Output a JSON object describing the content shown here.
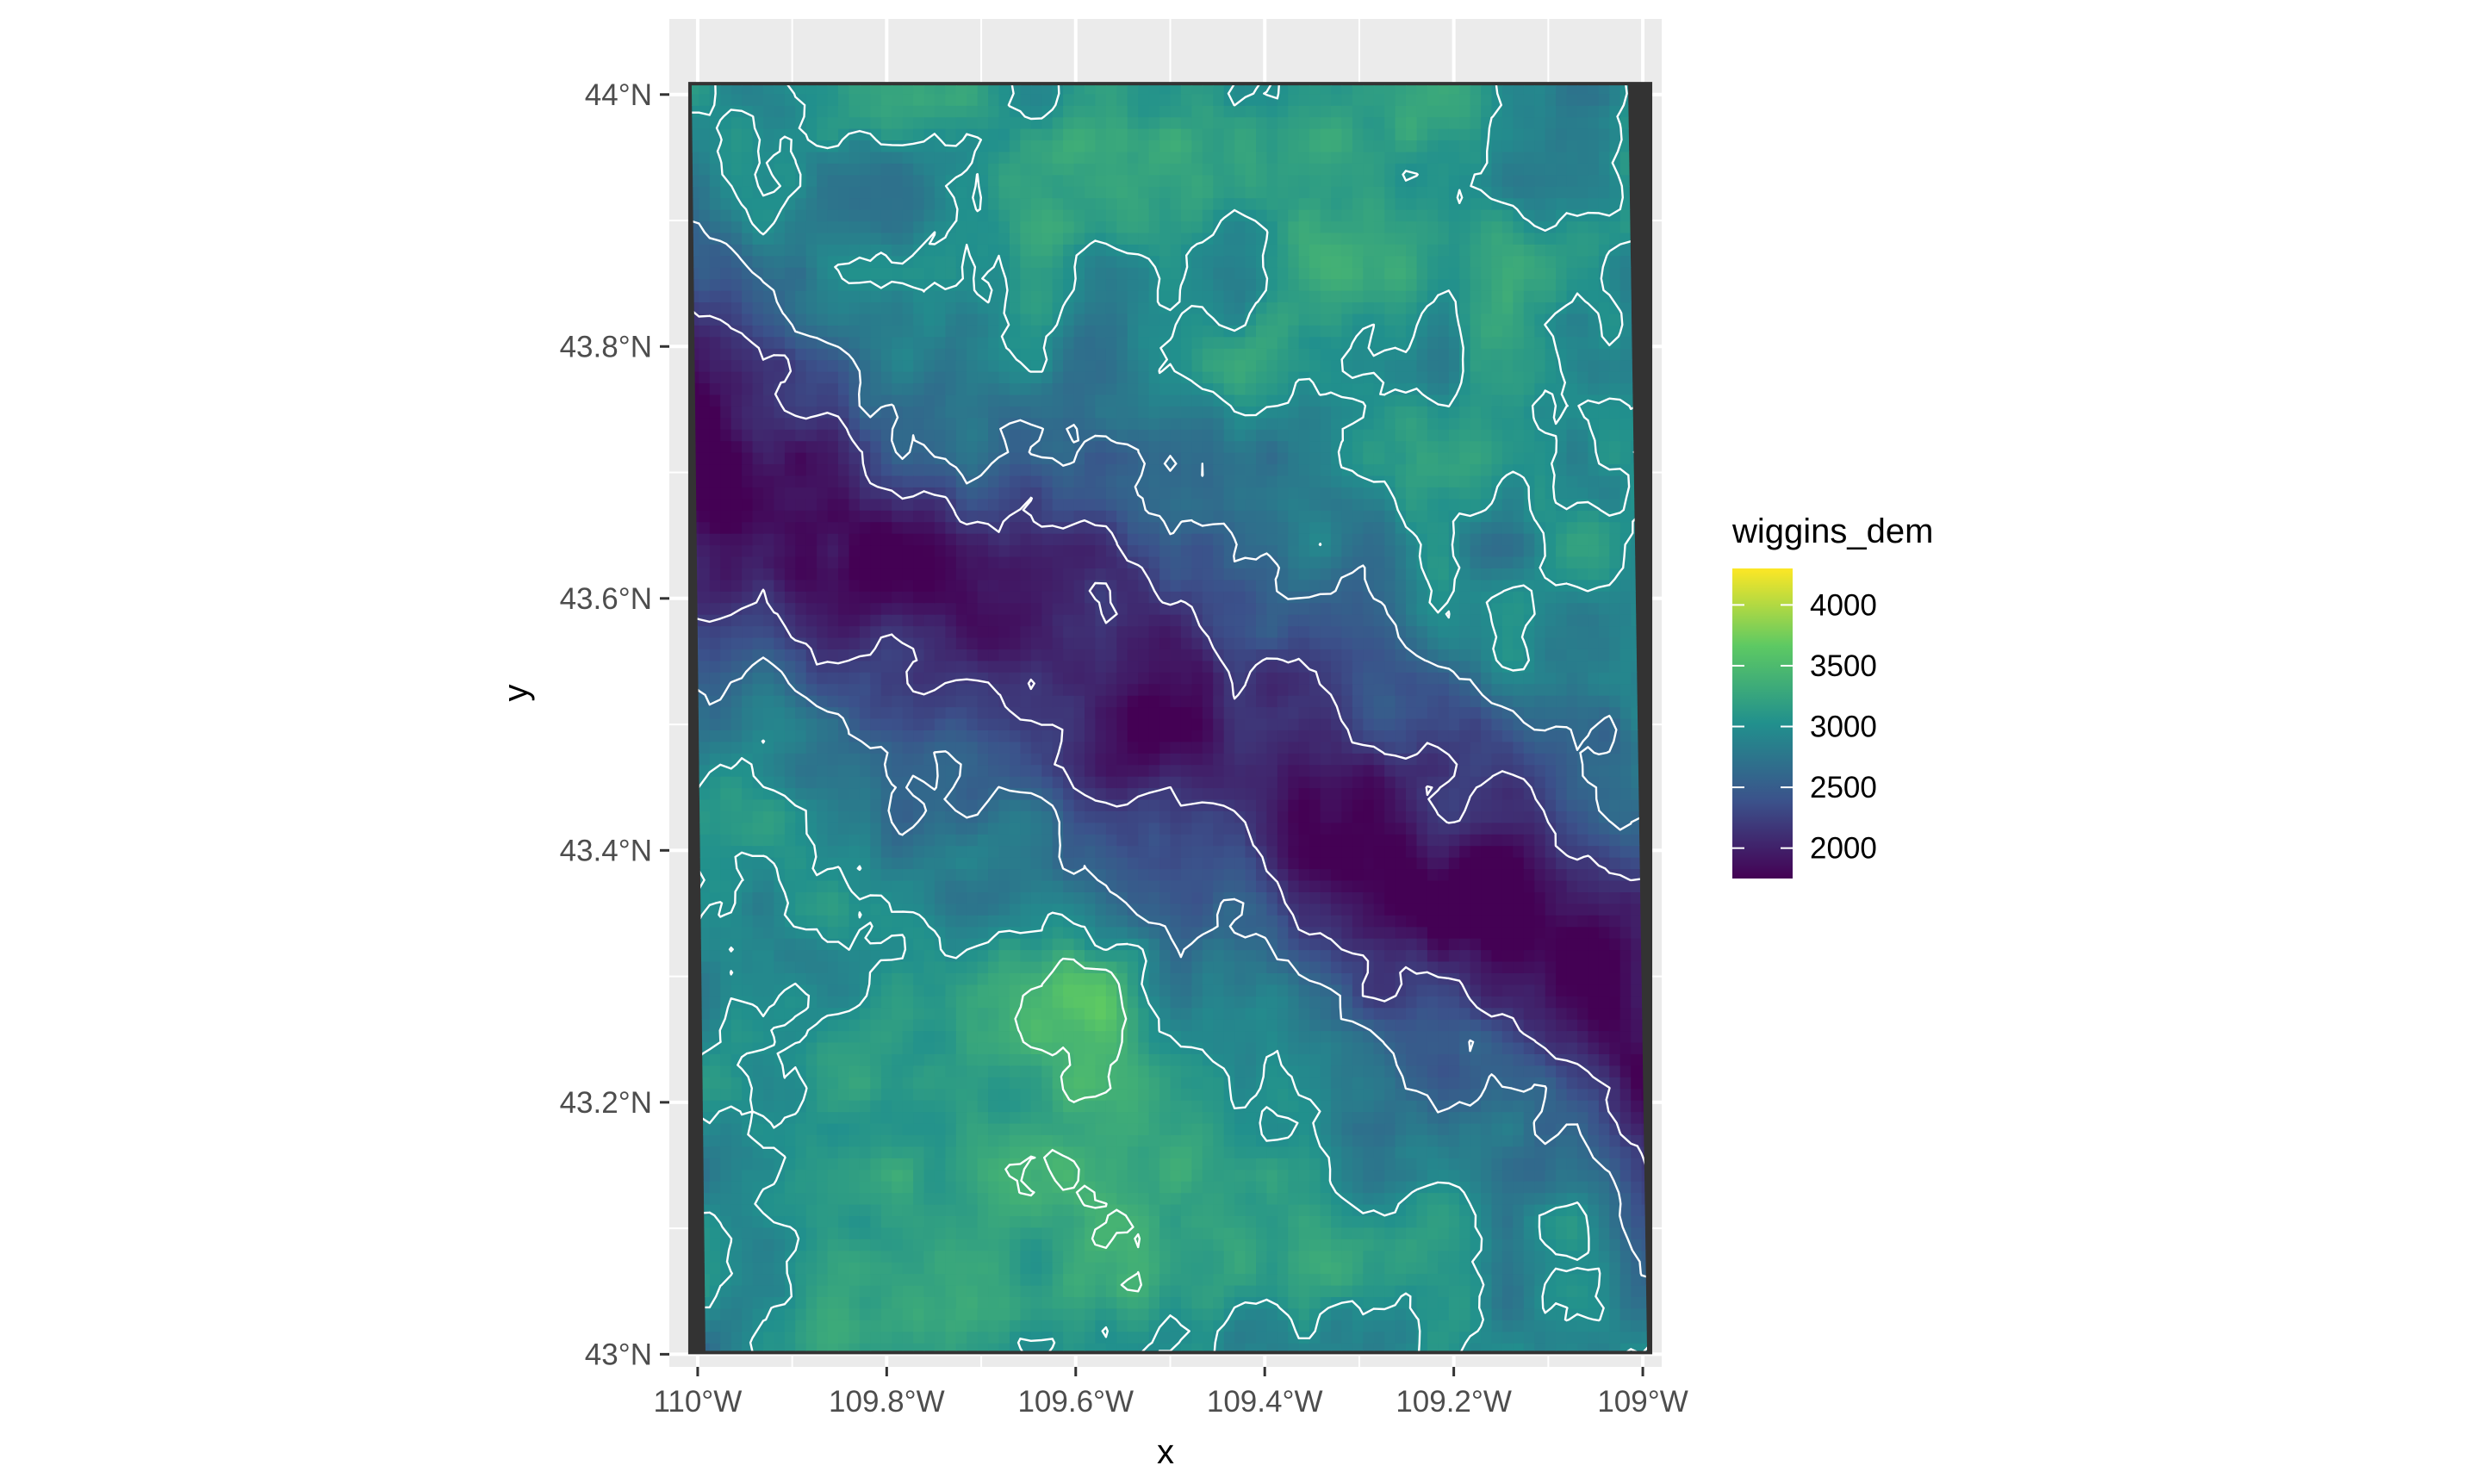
{
  "chart_data": {
    "type": "heatmap",
    "subtype": "raster-map-with-contours",
    "title": "",
    "xlabel": "x",
    "ylabel": "y",
    "xlim": [
      -110.03,
      -108.98
    ],
    "ylim": [
      42.99,
      44.06
    ],
    "x_ticks": [
      {
        "value": -110.0,
        "label": "110°W"
      },
      {
        "value": -109.8,
        "label": "109.8°W"
      },
      {
        "value": -109.6,
        "label": "109.6°W"
      },
      {
        "value": -109.4,
        "label": "109.4°W"
      },
      {
        "value": -109.2,
        "label": "109.2°W"
      },
      {
        "value": -109.0,
        "label": "109°W"
      }
    ],
    "y_ticks": [
      {
        "value": 43.0,
        "label": "43°N"
      },
      {
        "value": 43.2,
        "label": "43.2°N"
      },
      {
        "value": 43.4,
        "label": "43.4°N"
      },
      {
        "value": 43.6,
        "label": "43.6°N"
      },
      {
        "value": 43.8,
        "label": "43.8°N"
      },
      {
        "value": 44.0,
        "label": "44°N"
      }
    ],
    "raster_extent": {
      "x": [
        -110.01,
        -108.99
      ],
      "y": [
        43.0,
        44.01
      ]
    },
    "fill_scale": {
      "name": "viridis",
      "limits": [
        1750,
        4300
      ],
      "colors": [
        "#440154",
        "#3b528b",
        "#21908d",
        "#5dc963",
        "#fde725"
      ]
    },
    "legend": {
      "title": "wiggins_dem",
      "position": "right",
      "breaks": [
        {
          "value": 4000,
          "label": "4000"
        },
        {
          "value": 3500,
          "label": "3500"
        },
        {
          "value": 3000,
          "label": "3000"
        },
        {
          "value": 2500,
          "label": "2500"
        },
        {
          "value": 2000,
          "label": "2000"
        }
      ]
    },
    "contour_color": "#ffffff",
    "panel_background": "#ebebeb",
    "grid": true,
    "nodata_color": "#333333"
  }
}
